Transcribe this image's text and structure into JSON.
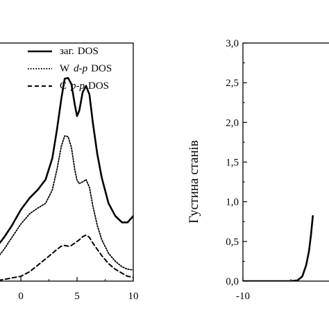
{
  "chart_data": [
    {
      "type": "line",
      "xlim": [
        -2.6,
        10
      ],
      "ylim": [
        0,
        3.0
      ],
      "x_ticks": [
        {
          "value": 0,
          "label": "0"
        },
        {
          "value": 5,
          "label": "5"
        },
        {
          "value": 10,
          "label": "10"
        }
      ],
      "legend_placement": "top-right",
      "legend": [
        {
          "prefix": "заг.",
          "italic": "",
          "suffix": "DOS",
          "style": "solid"
        },
        {
          "prefix": "W",
          "italic": "d-p",
          "suffix": "DOS",
          "style": "dotted"
        },
        {
          "prefix": "C",
          "italic": "p-p",
          "suffix": "DOS",
          "style": "dashed"
        }
      ],
      "series": [
        {
          "name": "заг. DOS",
          "style": "solid",
          "x": [
            -2.6,
            -1.5,
            -0.8,
            0,
            0.8,
            1.5,
            2.2,
            2.8,
            3.2,
            3.6,
            3.9,
            4.2,
            4.5,
            4.8,
            5.0,
            5.2,
            5.5,
            5.8,
            6.1,
            6.4,
            6.8,
            7.2,
            7.8,
            8.4,
            9.0,
            9.5,
            10.0
          ],
          "y": [
            0.35,
            0.55,
            0.7,
            0.9,
            1.05,
            1.15,
            1.28,
            1.55,
            1.9,
            2.3,
            2.55,
            2.56,
            2.48,
            2.22,
            2.08,
            2.15,
            2.38,
            2.46,
            2.35,
            2.0,
            1.6,
            1.3,
            0.98,
            0.82,
            0.74,
            0.74,
            0.82
          ]
        },
        {
          "name": "W d-p DOS",
          "style": "dotted",
          "x": [
            -2.6,
            -1.5,
            -0.8,
            0,
            0.8,
            1.5,
            2.2,
            2.8,
            3.2,
            3.6,
            3.9,
            4.2,
            4.5,
            4.8,
            5.0,
            5.2,
            5.5,
            5.8,
            6.1,
            6.4,
            6.8,
            7.2,
            7.8,
            8.4,
            9.0,
            9.5,
            10.0
          ],
          "y": [
            0.2,
            0.4,
            0.55,
            0.72,
            0.85,
            0.92,
            0.98,
            1.15,
            1.4,
            1.7,
            1.83,
            1.82,
            1.68,
            1.4,
            1.27,
            1.23,
            1.25,
            1.28,
            1.18,
            0.95,
            0.7,
            0.52,
            0.35,
            0.25,
            0.18,
            0.15,
            0.14
          ]
        },
        {
          "name": "C p-p DOS",
          "style": "dashed",
          "x": [
            -2.6,
            -1.5,
            -0.8,
            0,
            0.8,
            1.5,
            2.2,
            2.8,
            3.2,
            3.6,
            3.9,
            4.2,
            4.5,
            4.8,
            5.0,
            5.2,
            5.5,
            5.8,
            6.1,
            6.4,
            6.8,
            7.2,
            7.8,
            8.4,
            9.0,
            9.5,
            10.0
          ],
          "y": [
            0.0,
            0.02,
            0.04,
            0.06,
            0.12,
            0.2,
            0.28,
            0.35,
            0.4,
            0.44,
            0.45,
            0.44,
            0.45,
            0.48,
            0.5,
            0.52,
            0.56,
            0.58,
            0.55,
            0.48,
            0.4,
            0.32,
            0.22,
            0.15,
            0.1,
            0.06,
            0.05
          ]
        }
      ]
    },
    {
      "type": "line",
      "ylabel": "Густина станів",
      "xlim": [
        -10,
        1
      ],
      "ylim": [
        0,
        3.0
      ],
      "x_ticks": [
        {
          "value": -10,
          "label": "-10"
        }
      ],
      "y_ticks": [
        {
          "value": 0.0,
          "label": "0,0"
        },
        {
          "value": 0.5,
          "label": "0,5"
        },
        {
          "value": 1.0,
          "label": "1,0"
        },
        {
          "value": 1.5,
          "label": "1,5"
        },
        {
          "value": 2.0,
          "label": "2,0"
        },
        {
          "value": 2.5,
          "label": "2,5"
        },
        {
          "value": 3.0,
          "label": "3,0"
        }
      ],
      "series": [
        {
          "style": "solid",
          "x": [
            -10,
            -6,
            -5,
            -4.3,
            -3.8,
            -3.4,
            -3.1,
            -2.9,
            -2.7
          ],
          "y": [
            0,
            0,
            0,
            0.01,
            0.06,
            0.2,
            0.38,
            0.58,
            0.82
          ]
        }
      ]
    }
  ]
}
